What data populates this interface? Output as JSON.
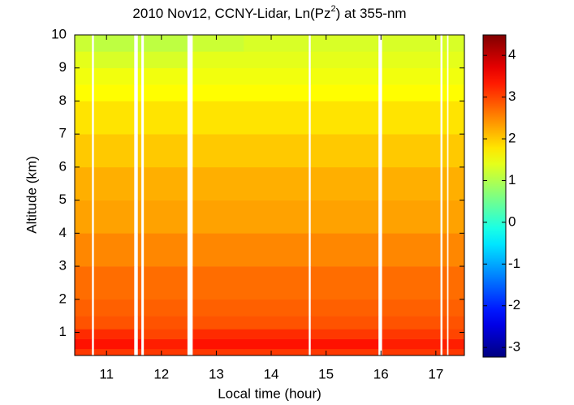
{
  "chart_data": {
    "type": "heatmap",
    "title": "2010 Nov12, CCNY-Lidar, Ln(Pz",
    "title_superscript": "2",
    "title_suffix": ") at 355-nm",
    "x_label": "Local time (hour)",
    "y_label": "Altitude (km)",
    "xlim": [
      10.42,
      17.52
    ],
    "xticks": [
      11,
      12,
      13,
      14,
      15,
      16,
      17
    ],
    "ylim": [
      0.3,
      10
    ],
    "yticks": [
      1,
      2,
      3,
      4,
      5,
      6,
      7,
      8,
      9,
      10
    ],
    "xbins": [
      10.42,
      10.73,
      10.77,
      11.5,
      11.57,
      11.63,
      11.68,
      12.47,
      12.57,
      13.5,
      14.68,
      14.72,
      15.95,
      16.02,
      17.08,
      17.12,
      17.2,
      17.23,
      17.52
    ],
    "ybins": [
      0.3,
      0.5,
      0.8,
      1.1,
      1.5,
      2,
      3,
      4,
      5,
      6,
      7,
      8,
      8.5,
      9,
      9.5,
      10
    ],
    "z": [
      [
        3.1,
        null,
        3.1,
        null,
        3.1,
        null,
        3.1,
        null,
        3.1,
        3.1,
        null,
        3.1,
        null,
        3.1,
        null,
        3.1,
        null,
        3.1
      ],
      [
        3.4,
        null,
        3.4,
        null,
        3.4,
        null,
        3.3,
        null,
        3.4,
        3.4,
        null,
        3.4,
        null,
        3.3,
        null,
        3.3,
        null,
        3.3
      ],
      [
        3.2,
        null,
        3.2,
        null,
        3.1,
        null,
        3.0,
        null,
        3.2,
        3.2,
        null,
        3.1,
        null,
        3.1,
        null,
        3.0,
        null,
        3.0
      ],
      [
        2.9,
        null,
        2.9,
        null,
        2.9,
        null,
        2.9,
        null,
        2.9,
        2.9,
        null,
        2.9,
        null,
        2.9,
        null,
        2.9,
        null,
        2.9
      ],
      [
        2.8,
        null,
        2.8,
        null,
        2.8,
        null,
        2.8,
        null,
        2.8,
        2.8,
        null,
        2.8,
        null,
        2.8,
        null,
        2.8,
        null,
        2.8
      ],
      [
        2.7,
        null,
        2.7,
        null,
        2.7,
        null,
        2.7,
        null,
        2.7,
        2.7,
        null,
        2.7,
        null,
        2.7,
        null,
        2.7,
        null,
        2.7
      ],
      [
        2.5,
        null,
        2.5,
        null,
        2.5,
        null,
        2.5,
        null,
        2.5,
        2.5,
        null,
        2.5,
        null,
        2.5,
        null,
        2.5,
        null,
        2.5
      ],
      [
        2.3,
        null,
        2.3,
        null,
        2.3,
        null,
        2.3,
        null,
        2.3,
        2.3,
        null,
        2.3,
        null,
        2.3,
        null,
        2.3,
        null,
        2.3
      ],
      [
        2.2,
        null,
        2.2,
        null,
        2.2,
        null,
        2.2,
        null,
        2.2,
        2.2,
        null,
        2.2,
        null,
        2.2,
        null,
        2.2,
        null,
        2.2
      ],
      [
        2.0,
        null,
        2.0,
        null,
        2.0,
        null,
        2.0,
        null,
        2.0,
        2.0,
        null,
        2.0,
        null,
        2.0,
        null,
        2.0,
        null,
        2.0
      ],
      [
        1.8,
        null,
        1.8,
        null,
        1.8,
        null,
        1.8,
        null,
        1.8,
        1.8,
        null,
        1.8,
        null,
        1.8,
        null,
        1.8,
        null,
        1.8
      ],
      [
        1.6,
        null,
        1.6,
        null,
        1.6,
        null,
        1.6,
        null,
        1.6,
        1.6,
        null,
        1.6,
        null,
        1.6,
        null,
        1.6,
        null,
        1.6
      ],
      [
        1.5,
        null,
        1.5,
        null,
        1.5,
        null,
        1.5,
        null,
        1.5,
        1.5,
        null,
        1.5,
        null,
        1.5,
        null,
        1.5,
        null,
        1.5
      ],
      [
        1.4,
        null,
        1.3,
        null,
        1.3,
        null,
        1.3,
        null,
        1.4,
        1.4,
        null,
        1.4,
        null,
        1.4,
        null,
        1.4,
        null,
        1.4
      ],
      [
        1.2,
        null,
        1.1,
        null,
        1.1,
        null,
        1.1,
        null,
        1.2,
        1.3,
        null,
        1.3,
        null,
        1.3,
        null,
        1.3,
        null,
        1.3
      ]
    ],
    "colormap": "jet",
    "clim": [
      -3.23,
      4.49
    ],
    "cticks": [
      -3,
      -2,
      -1,
      0,
      1,
      2,
      3,
      4
    ]
  }
}
